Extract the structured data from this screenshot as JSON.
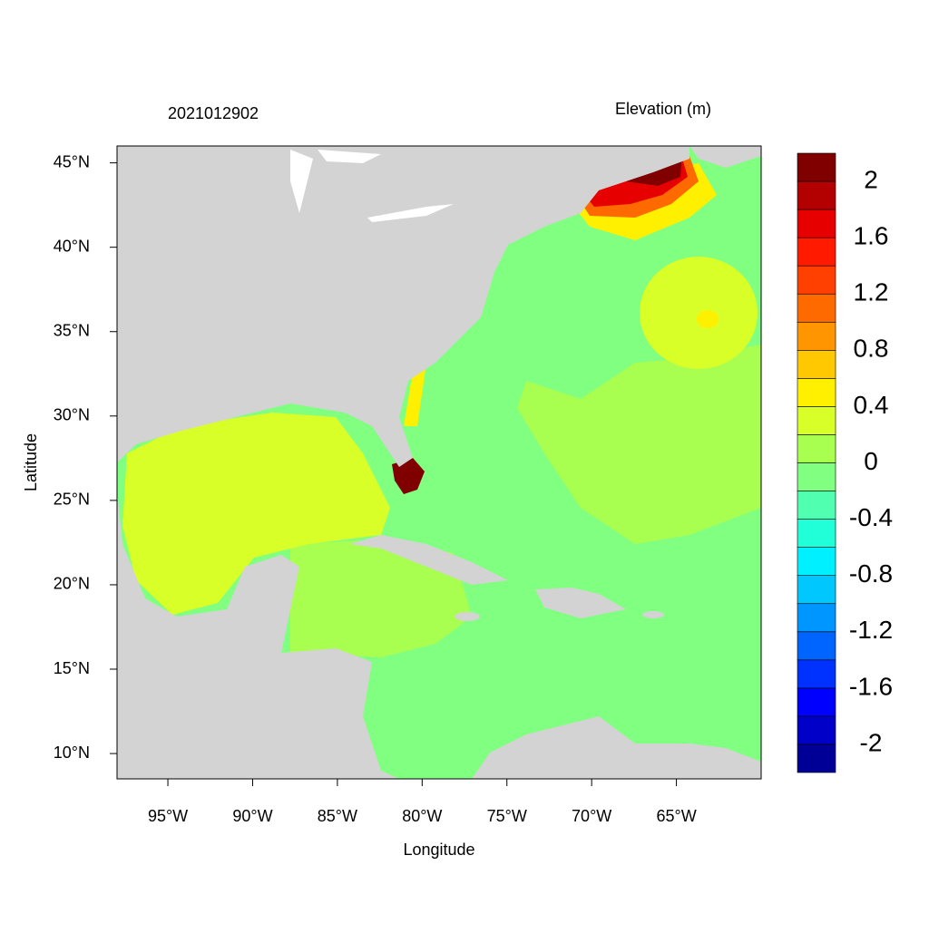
{
  "chart_data": {
    "type": "contour-map",
    "title": "2021012902",
    "subtitle": "Elevation (m)",
    "x_label": "Longitude",
    "y_label": "Latitude",
    "xlim": [
      -98,
      -60
    ],
    "ylim": [
      8.5,
      46
    ],
    "xticks": [
      {
        "value": -95,
        "label": "95°W"
      },
      {
        "value": -90,
        "label": "90°W"
      },
      {
        "value": -85,
        "label": "85°W"
      },
      {
        "value": -80,
        "label": "80°W"
      },
      {
        "value": -75,
        "label": "75°W"
      },
      {
        "value": -70,
        "label": "70°W"
      },
      {
        "value": -65,
        "label": "65°W"
      }
    ],
    "yticks": [
      {
        "value": 10,
        "label": "10°N"
      },
      {
        "value": 15,
        "label": "15°N"
      },
      {
        "value": 20,
        "label": "20°N"
      },
      {
        "value": 25,
        "label": "25°N"
      },
      {
        "value": 30,
        "label": "30°N"
      },
      {
        "value": 35,
        "label": "35°N"
      },
      {
        "value": 40,
        "label": "40°N"
      },
      {
        "value": 45,
        "label": "45°N"
      }
    ],
    "colorbar": {
      "levels": [
        -2,
        -1.8,
        -1.6,
        -1.4,
        -1.2,
        -1,
        -0.8,
        -0.6,
        -0.4,
        -0.2,
        0,
        0.2,
        0.4,
        0.6,
        0.8,
        1,
        1.2,
        1.4,
        1.6,
        1.8,
        2
      ],
      "ticks": [
        -2,
        -1.6,
        -1.2,
        -0.8,
        -0.4,
        0,
        0.4,
        0.8,
        1.2,
        1.6,
        2
      ],
      "colors": [
        "#000096",
        "#0000c8",
        "#0000ff",
        "#0032ff",
        "#0064ff",
        "#0096ff",
        "#00c8ff",
        "#00f0ff",
        "#20ffd8",
        "#50ffb0",
        "#80ff80",
        "#a8ff50",
        "#d8ff28",
        "#fff000",
        "#ffc800",
        "#ff9500",
        "#ff6a00",
        "#ff4000",
        "#ff1a00",
        "#e60000",
        "#b30000",
        "#800000"
      ]
    }
  }
}
